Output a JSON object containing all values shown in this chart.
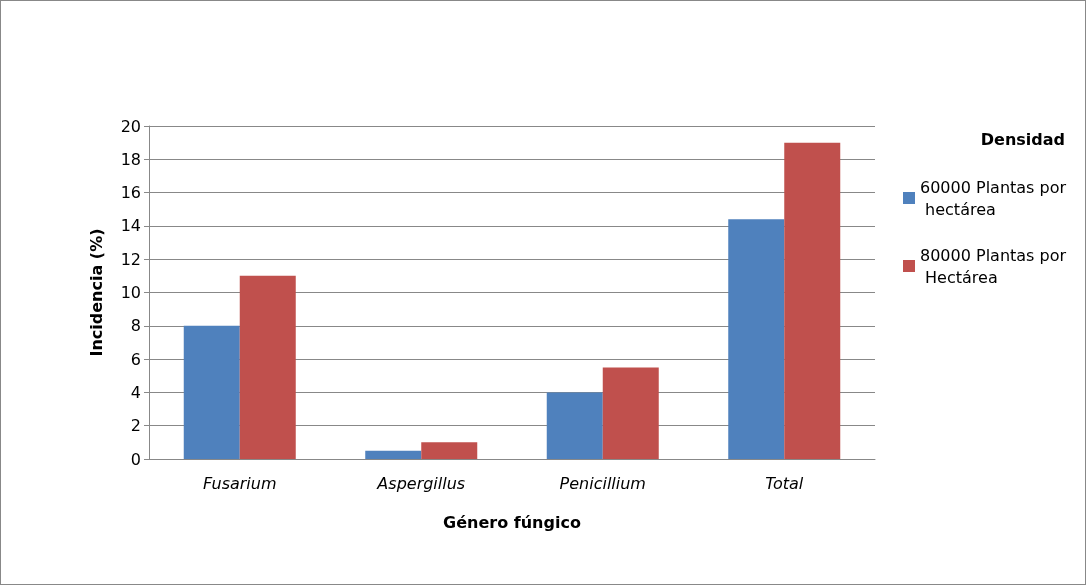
{
  "chart_data": {
    "type": "bar",
    "xlabel": "Género fúngico",
    "ylabel": "Incidencia (%)",
    "legend_title": "Densidad",
    "categories": [
      "Fusarium",
      "Aspergillus",
      "Penicillium",
      "Total"
    ],
    "series": [
      {
        "name": "60000 Plantas por hectárea",
        "color": "#4f81bd",
        "values": [
          8,
          0.5,
          4,
          14.4
        ]
      },
      {
        "name": "80000 Plantas por Hectárea",
        "color": "#c0504d",
        "values": [
          11,
          1,
          5.5,
          19
        ]
      }
    ],
    "ylim": [
      0,
      20
    ],
    "yticks": [
      0,
      2,
      4,
      6,
      8,
      10,
      12,
      14,
      16,
      18,
      20
    ],
    "grid": "y",
    "legend": "right"
  }
}
